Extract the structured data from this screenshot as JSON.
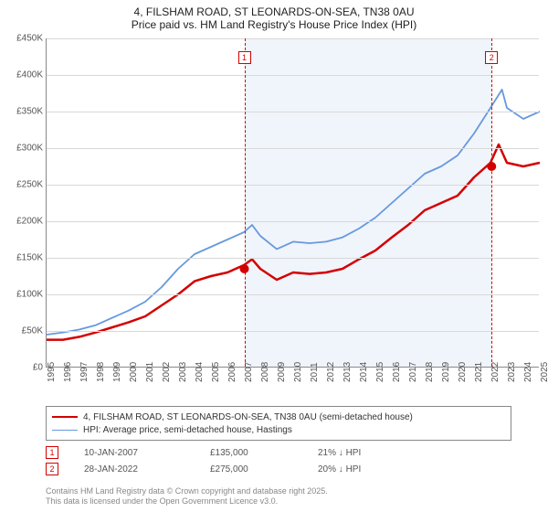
{
  "title": {
    "line1": "4, FILSHAM ROAD, ST LEONARDS-ON-SEA, TN38 0AU",
    "line2": "Price paid vs. HM Land Registry's House Price Index (HPI)"
  },
  "chart": {
    "type": "line",
    "background_color": "#ffffff",
    "grid_color": "#d8d8d8",
    "shade_color": "#eaf0fa",
    "ylim": [
      0,
      450000
    ],
    "ytick_step": 50000,
    "ytick_labels": [
      "£0",
      "£50K",
      "£100K",
      "£150K",
      "£200K",
      "£250K",
      "£300K",
      "£350K",
      "£400K",
      "£450K"
    ],
    "xlim": [
      1995,
      2025
    ],
    "xtick_years": [
      1995,
      1996,
      1997,
      1998,
      1999,
      2000,
      2001,
      2002,
      2003,
      2004,
      2005,
      2006,
      2007,
      2008,
      2009,
      2010,
      2011,
      2012,
      2013,
      2014,
      2015,
      2016,
      2017,
      2018,
      2019,
      2020,
      2021,
      2022,
      2023,
      2024,
      2025
    ],
    "shaded_ranges": [
      [
        2007.03,
        2022.07
      ]
    ],
    "events": [
      {
        "num": "1",
        "year": 2007.03,
        "date": "10-JAN-2007",
        "price": "£135,000",
        "delta": "21% ↓ HPI"
      },
      {
        "num": "2",
        "year": 2022.07,
        "date": "28-JAN-2022",
        "price": "£275,000",
        "delta": "20% ↓ HPI"
      }
    ],
    "series": [
      {
        "name": "price_paid",
        "label": "4, FILSHAM ROAD, ST LEONARDS-ON-SEA, TN38 0AU (semi-detached house)",
        "color": "#d40000",
        "line_width": 2.5,
        "data": [
          [
            1995,
            38000
          ],
          [
            1996,
            38000
          ],
          [
            1997,
            42000
          ],
          [
            1998,
            48000
          ],
          [
            1999,
            55000
          ],
          [
            2000,
            62000
          ],
          [
            2001,
            70000
          ],
          [
            2002,
            85000
          ],
          [
            2003,
            100000
          ],
          [
            2004,
            118000
          ],
          [
            2005,
            125000
          ],
          [
            2006,
            130000
          ],
          [
            2007,
            140000
          ],
          [
            2007.5,
            148000
          ],
          [
            2008,
            135000
          ],
          [
            2009,
            120000
          ],
          [
            2010,
            130000
          ],
          [
            2011,
            128000
          ],
          [
            2012,
            130000
          ],
          [
            2013,
            135000
          ],
          [
            2014,
            148000
          ],
          [
            2015,
            160000
          ],
          [
            2016,
            178000
          ],
          [
            2017,
            195000
          ],
          [
            2018,
            215000
          ],
          [
            2019,
            225000
          ],
          [
            2020,
            235000
          ],
          [
            2021,
            260000
          ],
          [
            2022,
            280000
          ],
          [
            2022.5,
            305000
          ],
          [
            2023,
            280000
          ],
          [
            2024,
            275000
          ],
          [
            2025,
            280000
          ]
        ],
        "markers": [
          {
            "year": 2007.03,
            "value": 135000
          },
          {
            "year": 2022.07,
            "value": 275000
          }
        ]
      },
      {
        "name": "hpi",
        "label": "HPI: Average price, semi-detached house, Hastings",
        "color": "#6699dd",
        "line_width": 1.8,
        "data": [
          [
            1995,
            45000
          ],
          [
            1996,
            48000
          ],
          [
            1997,
            52000
          ],
          [
            1998,
            58000
          ],
          [
            1999,
            68000
          ],
          [
            2000,
            78000
          ],
          [
            2001,
            90000
          ],
          [
            2002,
            110000
          ],
          [
            2003,
            135000
          ],
          [
            2004,
            155000
          ],
          [
            2005,
            165000
          ],
          [
            2006,
            175000
          ],
          [
            2007,
            185000
          ],
          [
            2007.5,
            195000
          ],
          [
            2008,
            180000
          ],
          [
            2009,
            162000
          ],
          [
            2010,
            172000
          ],
          [
            2011,
            170000
          ],
          [
            2012,
            172000
          ],
          [
            2013,
            178000
          ],
          [
            2014,
            190000
          ],
          [
            2015,
            205000
          ],
          [
            2016,
            225000
          ],
          [
            2017,
            245000
          ],
          [
            2018,
            265000
          ],
          [
            2019,
            275000
          ],
          [
            2020,
            290000
          ],
          [
            2021,
            320000
          ],
          [
            2022,
            355000
          ],
          [
            2022.7,
            380000
          ],
          [
            2023,
            355000
          ],
          [
            2024,
            340000
          ],
          [
            2025,
            350000
          ]
        ]
      }
    ],
    "marker_style": {
      "size": 5,
      "fill": "#d40000"
    }
  },
  "footer": {
    "line1": "Contains HM Land Registry data © Crown copyright and database right 2025.",
    "line2": "This data is licensed under the Open Government Licence v3.0."
  }
}
